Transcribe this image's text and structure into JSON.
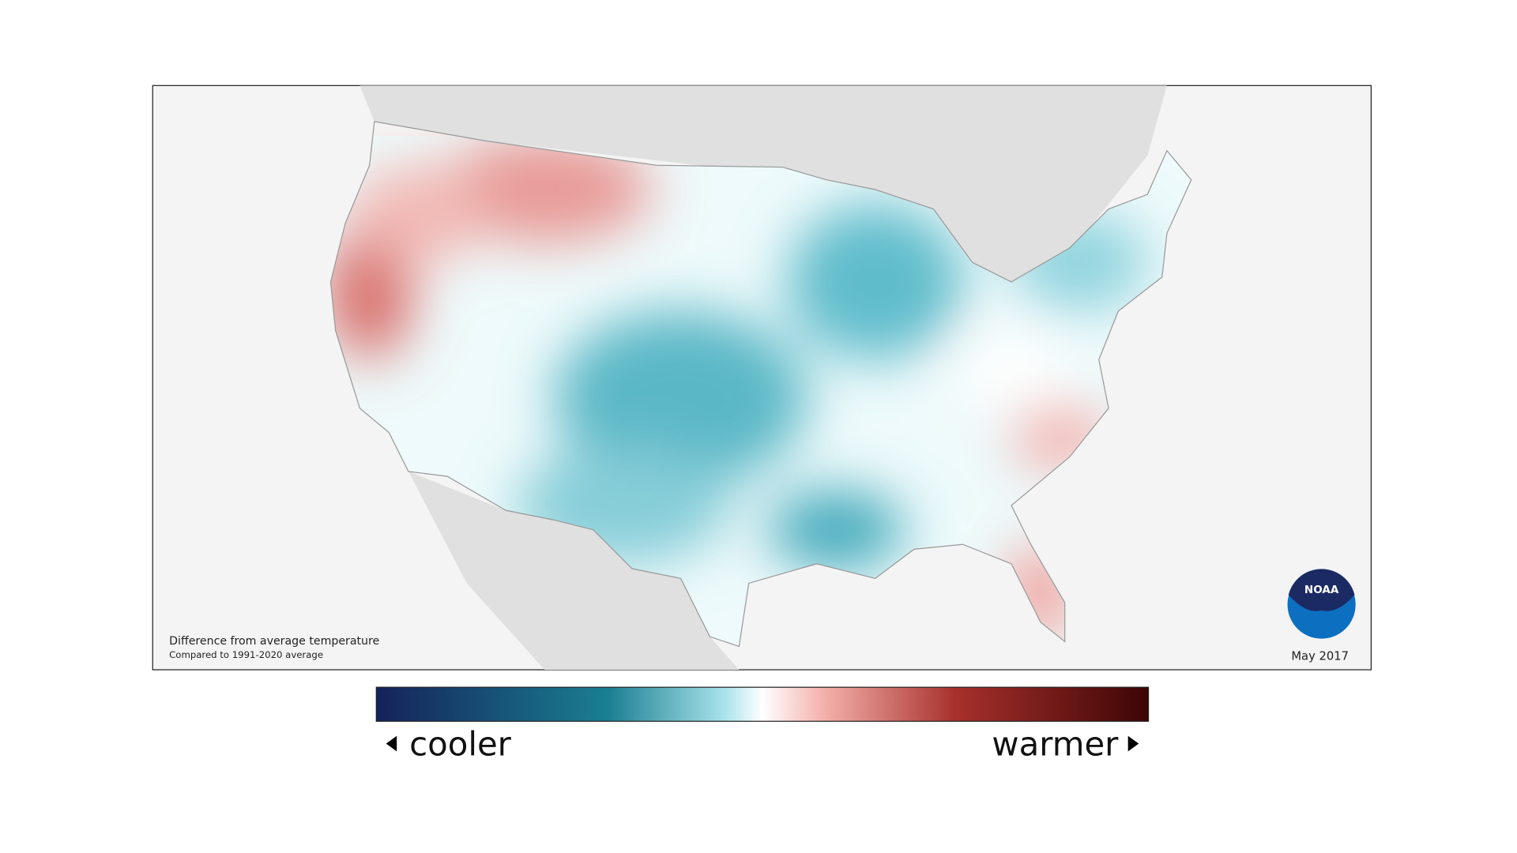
{
  "map": {
    "caption": "Difference from average temperature",
    "subcaption": "Compared to 1991-2020 average",
    "date": "May 2017",
    "logo": "NOAA"
  },
  "legend": {
    "low": "cooler",
    "high": "warmer"
  }
}
